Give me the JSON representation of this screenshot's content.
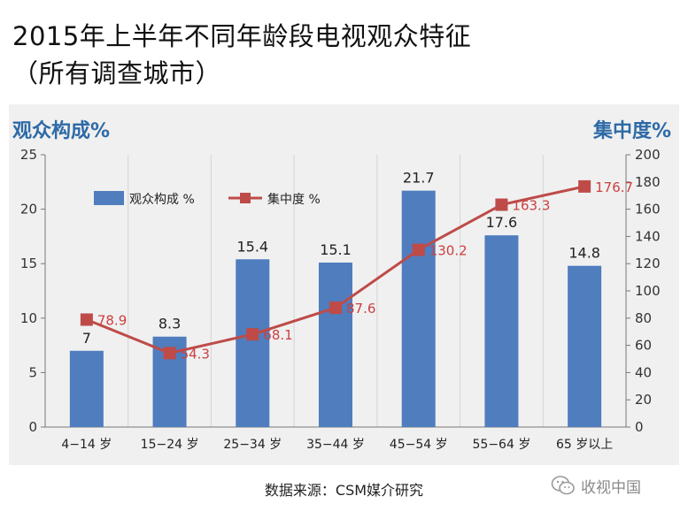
{
  "title": {
    "line1": "2015年上半年不同年龄段电视观众特征",
    "line2": "（所有调查城市）"
  },
  "source": "数据来源：CSM媒介研究",
  "watermark": {
    "icon": "wechat-icon",
    "text": "收视中国"
  },
  "colors": {
    "bar": "#4f7dbe",
    "line": "#be4b48",
    "axis_title": "#2e6aa6",
    "panel": "#f0f0f0"
  },
  "chart_data": {
    "type": "bar+line",
    "categories": [
      "4−14 岁",
      "15−24 岁",
      "25−34 岁",
      "35−44 岁",
      "45−54 岁",
      "55−64 岁",
      "65 岁以上"
    ],
    "series": [
      {
        "name": "观众构成  %",
        "type": "bar",
        "axis": "left",
        "values": [
          7,
          8.3,
          15.4,
          15.1,
          21.7,
          17.6,
          14.8
        ],
        "labels": [
          "7",
          "8.3",
          "15.4",
          "15.1",
          "21.7",
          "17.6",
          "14.8"
        ]
      },
      {
        "name": "集中度  %",
        "type": "line",
        "axis": "right",
        "values": [
          78.9,
          54.3,
          68.1,
          87.6,
          130.2,
          163.3,
          176.7
        ],
        "labels": [
          "78.9",
          "54.3",
          "68.1",
          "87.6",
          "130.2",
          "163.3",
          "176.7"
        ]
      }
    ],
    "y_left": {
      "title": "观众构成%",
      "min": 0,
      "max": 25,
      "ticks": [
        0,
        5,
        10,
        15,
        20,
        25
      ]
    },
    "y_right": {
      "title": "集中度%",
      "min": 0,
      "max": 200,
      "ticks": [
        0,
        20,
        40,
        60,
        80,
        100,
        120,
        140,
        160,
        180,
        200
      ]
    },
    "grid": "vertical",
    "legend": "top-left"
  }
}
